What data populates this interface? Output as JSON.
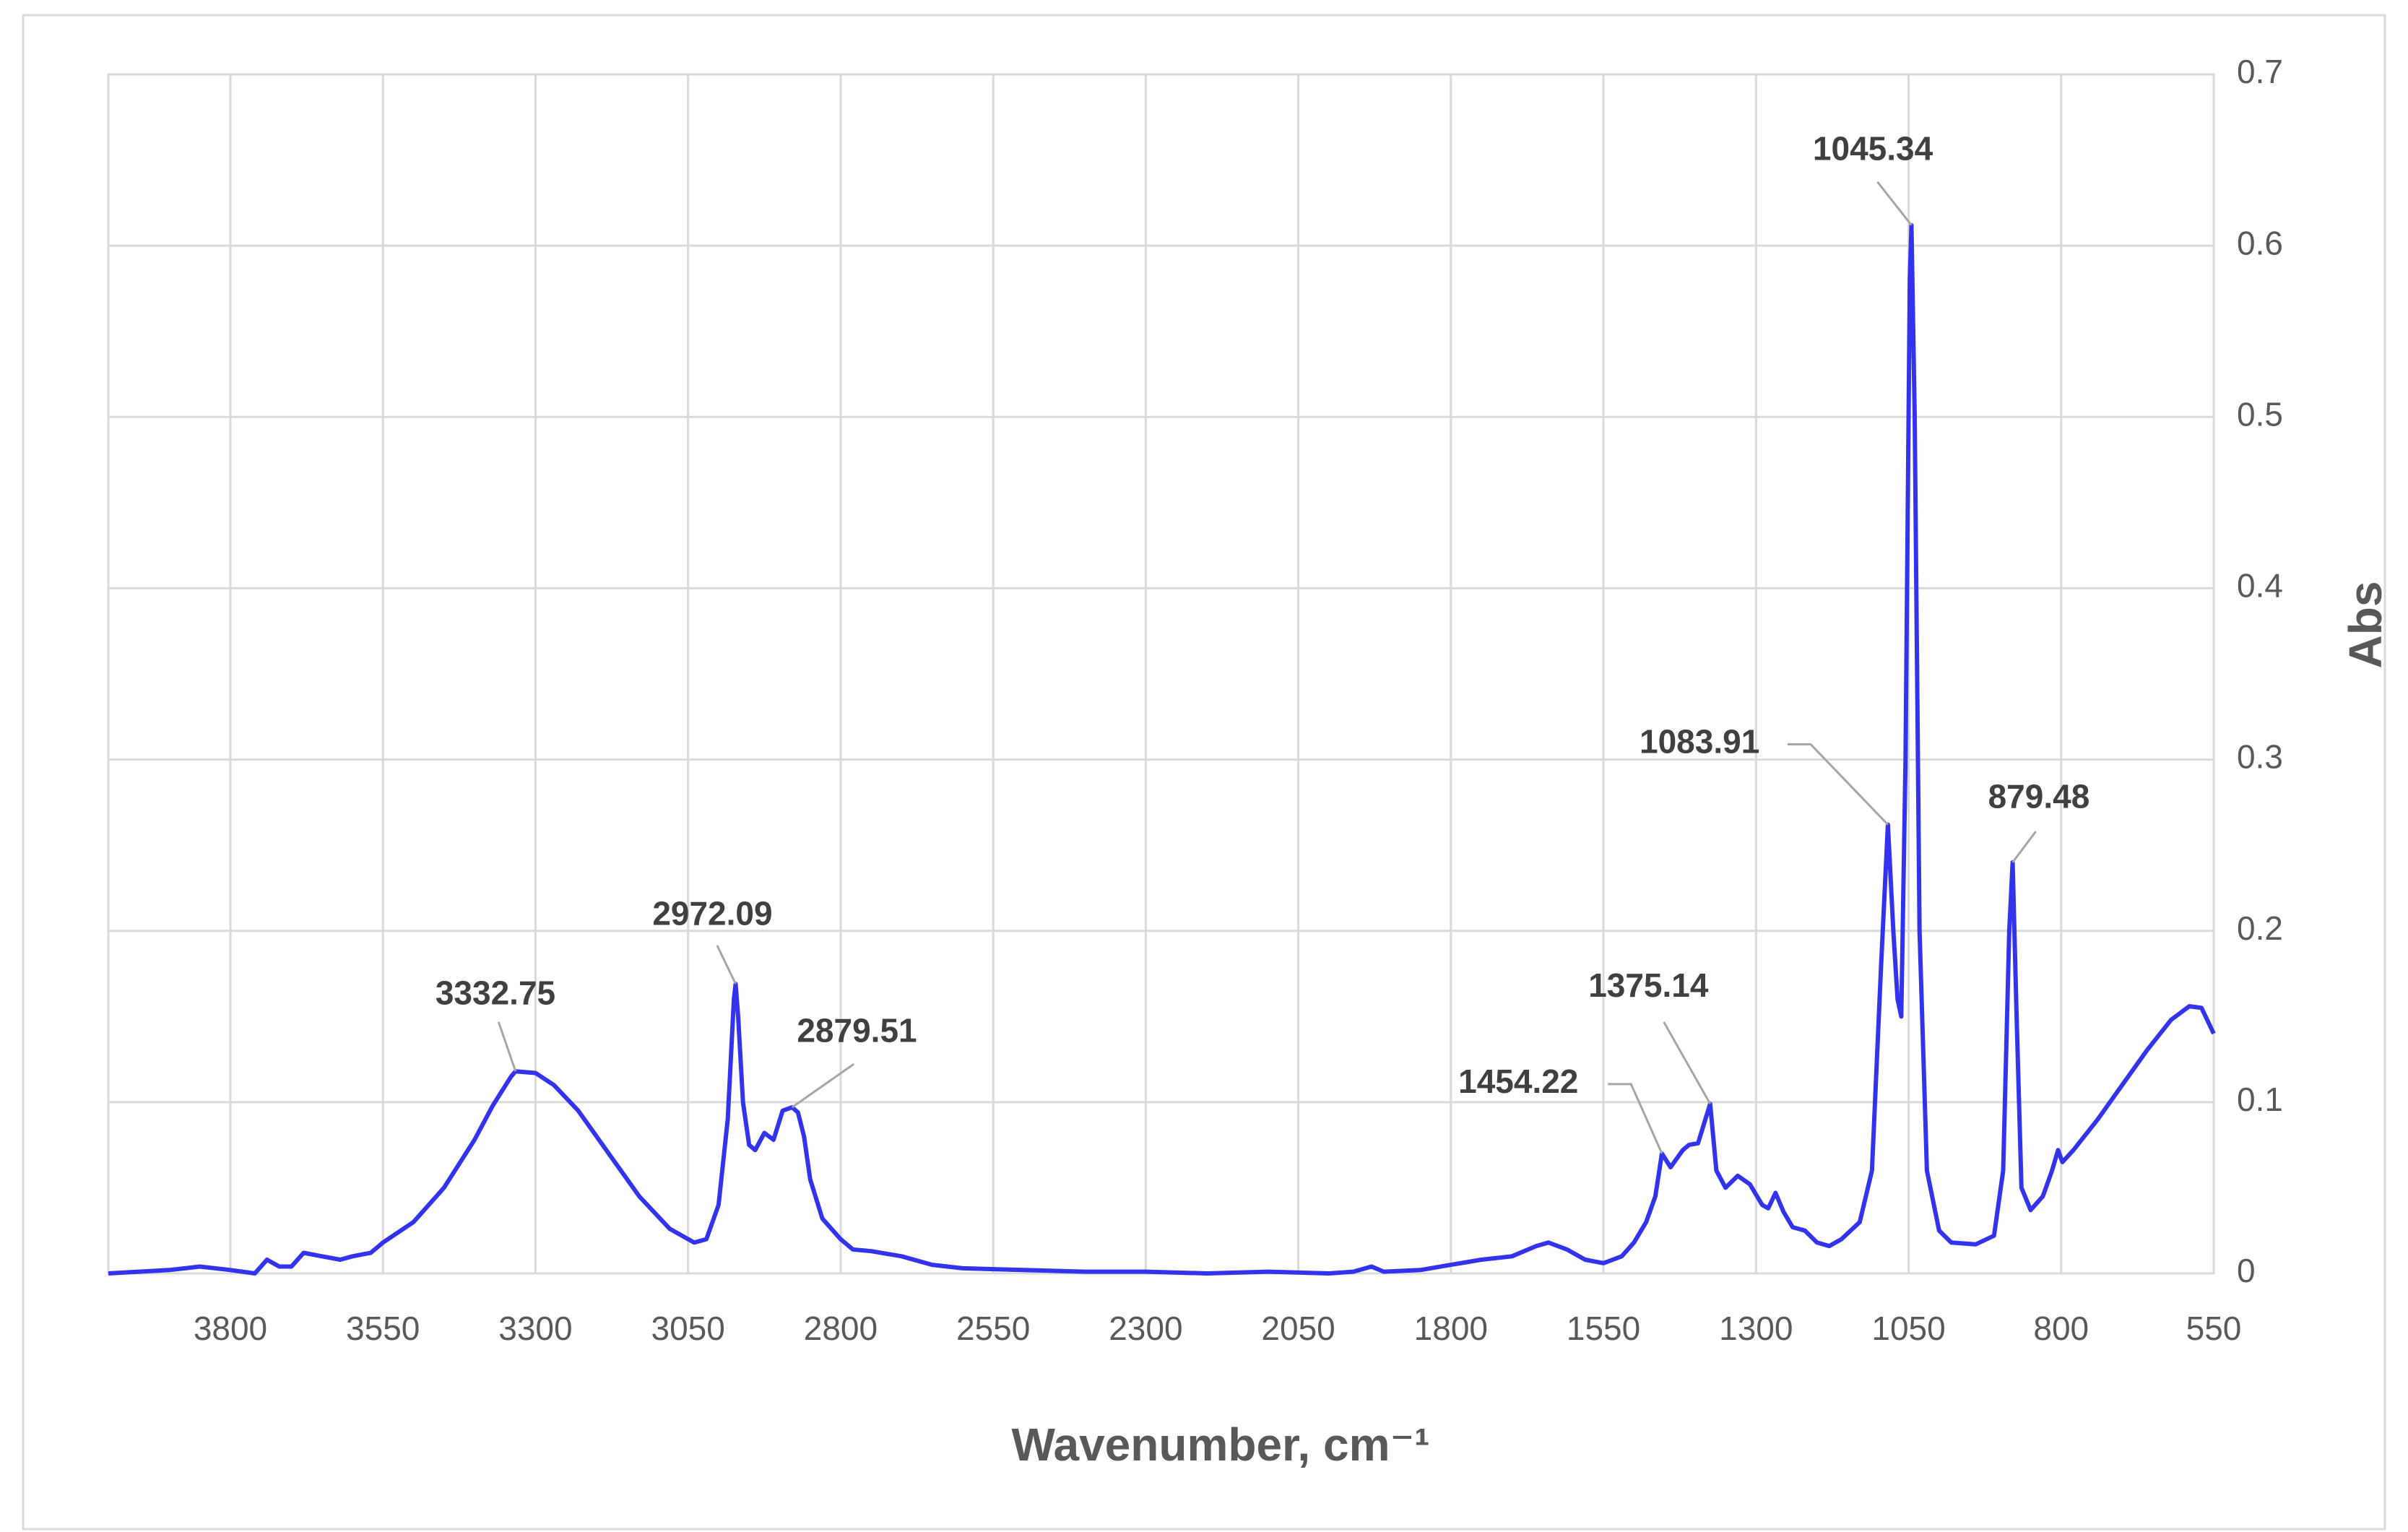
{
  "chart_data": {
    "type": "line",
    "xlabel": "Wavenumber, cm⁻¹",
    "ylabel": "Abs",
    "color": "#3333ee",
    "grid": true,
    "xlim": [
      4000,
      550
    ],
    "ylim": [
      0,
      0.7
    ],
    "xticks": [
      3800,
      3550,
      3300,
      3050,
      2800,
      2550,
      2300,
      2050,
      1800,
      1550,
      1300,
      1050,
      800,
      550
    ],
    "yticks": [
      0,
      0.1,
      0.2,
      0.3,
      0.4,
      0.5,
      0.6,
      0.7
    ],
    "x": [
      4000,
      3900,
      3850,
      3800,
      3760,
      3740,
      3720,
      3700,
      3680,
      3650,
      3620,
      3600,
      3570,
      3550,
      3500,
      3450,
      3400,
      3370,
      3340,
      3332.75,
      3300,
      3270,
      3230,
      3180,
      3130,
      3080,
      3040,
      3020,
      3000,
      2985,
      2975,
      2972.09,
      2968,
      2960,
      2950,
      2940,
      2925,
      2910,
      2895,
      2879.51,
      2870,
      2860,
      2850,
      2830,
      2800,
      2780,
      2750,
      2700,
      2650,
      2600,
      2500,
      2400,
      2300,
      2200,
      2100,
      2000,
      1960,
      1930,
      1910,
      1850,
      1800,
      1750,
      1700,
      1660,
      1640,
      1610,
      1580,
      1550,
      1520,
      1500,
      1480,
      1465,
      1454.22,
      1440,
      1420,
      1410,
      1395,
      1375.14,
      1365,
      1350,
      1330,
      1310,
      1290,
      1280,
      1268,
      1255,
      1240,
      1220,
      1200,
      1180,
      1160,
      1130,
      1110,
      1095,
      1083.91,
      1075,
      1068,
      1062,
      1055,
      1048,
      1045.34,
      1040,
      1032,
      1020,
      1000,
      980,
      940,
      910,
      895,
      885,
      879.48,
      873,
      865,
      850,
      830,
      815,
      805,
      798,
      780,
      740,
      700,
      660,
      620,
      590,
      570,
      550
    ],
    "values": [
      0.0,
      0.002,
      0.004,
      0.002,
      0.0,
      0.008,
      0.004,
      0.004,
      0.012,
      0.01,
      0.008,
      0.01,
      0.012,
      0.018,
      0.03,
      0.05,
      0.078,
      0.098,
      0.115,
      0.118,
      0.117,
      0.11,
      0.095,
      0.07,
      0.045,
      0.026,
      0.018,
      0.02,
      0.04,
      0.09,
      0.16,
      0.169,
      0.15,
      0.1,
      0.075,
      0.072,
      0.082,
      0.078,
      0.095,
      0.097,
      0.094,
      0.08,
      0.055,
      0.032,
      0.02,
      0.014,
      0.013,
      0.01,
      0.005,
      0.003,
      0.002,
      0.001,
      0.001,
      0.0,
      0.001,
      0.0,
      0.001,
      0.004,
      0.001,
      0.002,
      0.005,
      0.008,
      0.01,
      0.016,
      0.018,
      0.014,
      0.008,
      0.006,
      0.01,
      0.018,
      0.03,
      0.045,
      0.07,
      0.062,
      0.072,
      0.075,
      0.076,
      0.099,
      0.06,
      0.05,
      0.057,
      0.052,
      0.04,
      0.038,
      0.047,
      0.036,
      0.027,
      0.025,
      0.018,
      0.016,
      0.02,
      0.03,
      0.06,
      0.18,
      0.262,
      0.2,
      0.16,
      0.15,
      0.3,
      0.58,
      0.612,
      0.5,
      0.2,
      0.06,
      0.025,
      0.018,
      0.017,
      0.022,
      0.06,
      0.2,
      0.24,
      0.15,
      0.05,
      0.037,
      0.045,
      0.06,
      0.072,
      0.065,
      0.072,
      0.09,
      0.11,
      0.13,
      0.148,
      0.156,
      0.155,
      0.14
    ],
    "annotations": [
      {
        "label": "3332.75",
        "x": 3332.75,
        "y": 0.118
      },
      {
        "label": "2972.09",
        "x": 2972.09,
        "y": 0.169
      },
      {
        "label": "2879.51",
        "x": 2879.51,
        "y": 0.097
      },
      {
        "label": "1454.22",
        "x": 1454.22,
        "y": 0.07
      },
      {
        "label": "1375.14",
        "x": 1375.14,
        "y": 0.099
      },
      {
        "label": "1083.91",
        "x": 1083.91,
        "y": 0.262
      },
      {
        "label": "1045.34",
        "x": 1045.34,
        "y": 0.612
      },
      {
        "label": "879.48",
        "x": 879.48,
        "y": 0.24
      }
    ]
  }
}
